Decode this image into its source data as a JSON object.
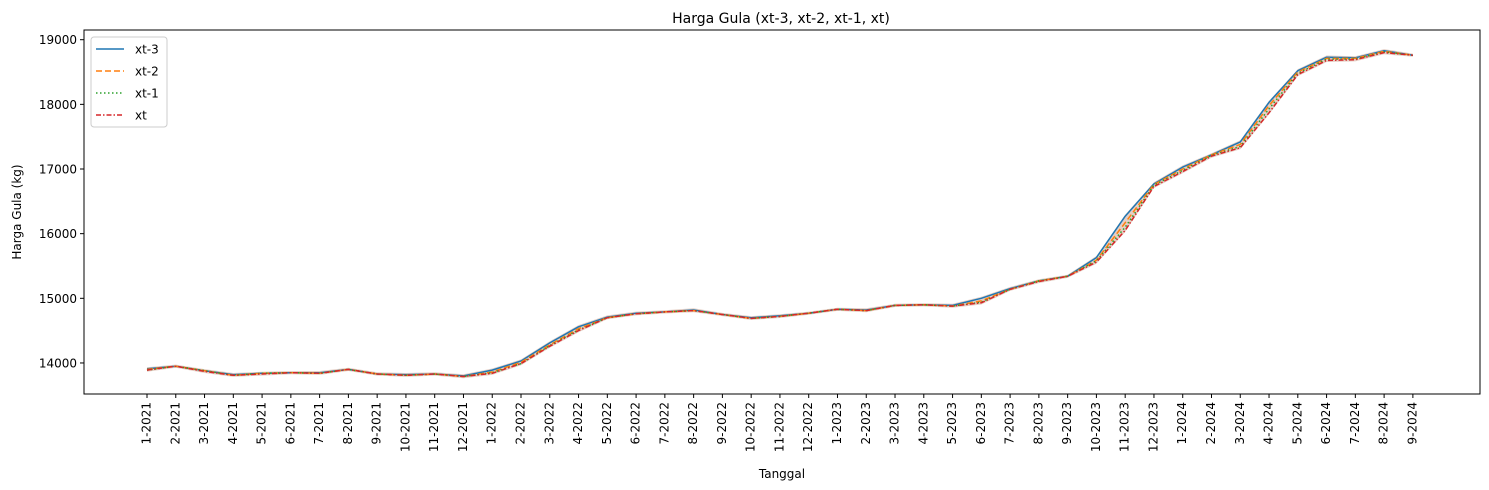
{
  "chart_data": {
    "type": "line",
    "title": "Harga Gula (xt-3, xt-2, xt-1, xt)",
    "xlabel": "Tanggal",
    "ylabel": "Harga Gula (kg)",
    "ylim": [
      13520,
      19150
    ],
    "yticks": [
      14000,
      15000,
      16000,
      17000,
      18000,
      19000
    ],
    "grid": false,
    "legend_position": "top-left",
    "categories": [
      "1-2021",
      "2-2021",
      "3-2021",
      "4-2021",
      "5-2021",
      "6-2021",
      "7-2021",
      "8-2021",
      "9-2021",
      "10-2021",
      "11-2021",
      "12-2021",
      "1-2022",
      "2-2022",
      "3-2022",
      "4-2022",
      "5-2022",
      "6-2022",
      "7-2022",
      "8-2022",
      "9-2022",
      "10-2022",
      "11-2022",
      "12-2022",
      "1-2023",
      "2-2023",
      "3-2023",
      "4-2023",
      "5-2023",
      "6-2023",
      "7-2023",
      "8-2023",
      "9-2023",
      "10-2023",
      "11-2023",
      "12-2023",
      "1-2024",
      "2-2024",
      "3-2024",
      "4-2024",
      "5-2024",
      "6-2024",
      "7-2024",
      "8-2024",
      "9-2024"
    ],
    "series": [
      {
        "name": "xt-3",
        "color": "#1f77b4",
        "dash": "solid",
        "values": [
          13910,
          13950,
          13880,
          13820,
          13840,
          13850,
          13850,
          13900,
          13830,
          13820,
          13830,
          13800,
          13890,
          14030,
          14310,
          14560,
          14710,
          14770,
          14790,
          14820,
          14750,
          14700,
          14730,
          14770,
          14830,
          14820,
          14890,
          14900,
          14890,
          15000,
          15150,
          15270,
          15340,
          15630,
          16270,
          16770,
          17030,
          17220,
          17420,
          18030,
          18520,
          18730,
          18720,
          18830,
          18760
        ]
      },
      {
        "name": "xt-2",
        "color": "#ff7f0e",
        "dash": "dashed",
        "values": [
          13900,
          13950,
          13880,
          13810,
          13840,
          13850,
          13840,
          13900,
          13830,
          13810,
          13830,
          13790,
          13860,
          14010,
          14280,
          14530,
          14700,
          14760,
          14790,
          14810,
          14750,
          14690,
          14720,
          14770,
          14830,
          14810,
          14890,
          14900,
          14880,
          14960,
          15140,
          15270,
          15340,
          15590,
          16170,
          16760,
          17000,
          17220,
          17380,
          17980,
          18500,
          18710,
          18710,
          18820,
          18760
        ]
      },
      {
        "name": "xt-1",
        "color": "#2ca02c",
        "dash": "dotted",
        "values": [
          13890,
          13950,
          13880,
          13810,
          13840,
          13850,
          13840,
          13900,
          13830,
          13810,
          13830,
          13790,
          13850,
          13990,
          14270,
          14510,
          14700,
          14760,
          14790,
          14810,
          14750,
          14690,
          14720,
          14770,
          14830,
          14810,
          14890,
          14900,
          14880,
          14940,
          15140,
          15270,
          15340,
          15580,
          16100,
          16750,
          16980,
          17210,
          17350,
          17930,
          18480,
          18700,
          18700,
          18810,
          18760
        ]
      },
      {
        "name": "xt",
        "color": "#d62728",
        "dash": "dashdot",
        "values": [
          13890,
          13950,
          13870,
          13810,
          13830,
          13850,
          13840,
          13900,
          13830,
          13810,
          13830,
          13790,
          13840,
          13990,
          14260,
          14500,
          14700,
          14760,
          14790,
          14810,
          14750,
          14690,
          14720,
          14770,
          14830,
          14810,
          14890,
          14900,
          14880,
          14930,
          15140,
          15260,
          15340,
          15560,
          16050,
          16730,
          16960,
          17200,
          17330,
          17870,
          18460,
          18680,
          18690,
          18800,
          18760
        ]
      }
    ]
  }
}
